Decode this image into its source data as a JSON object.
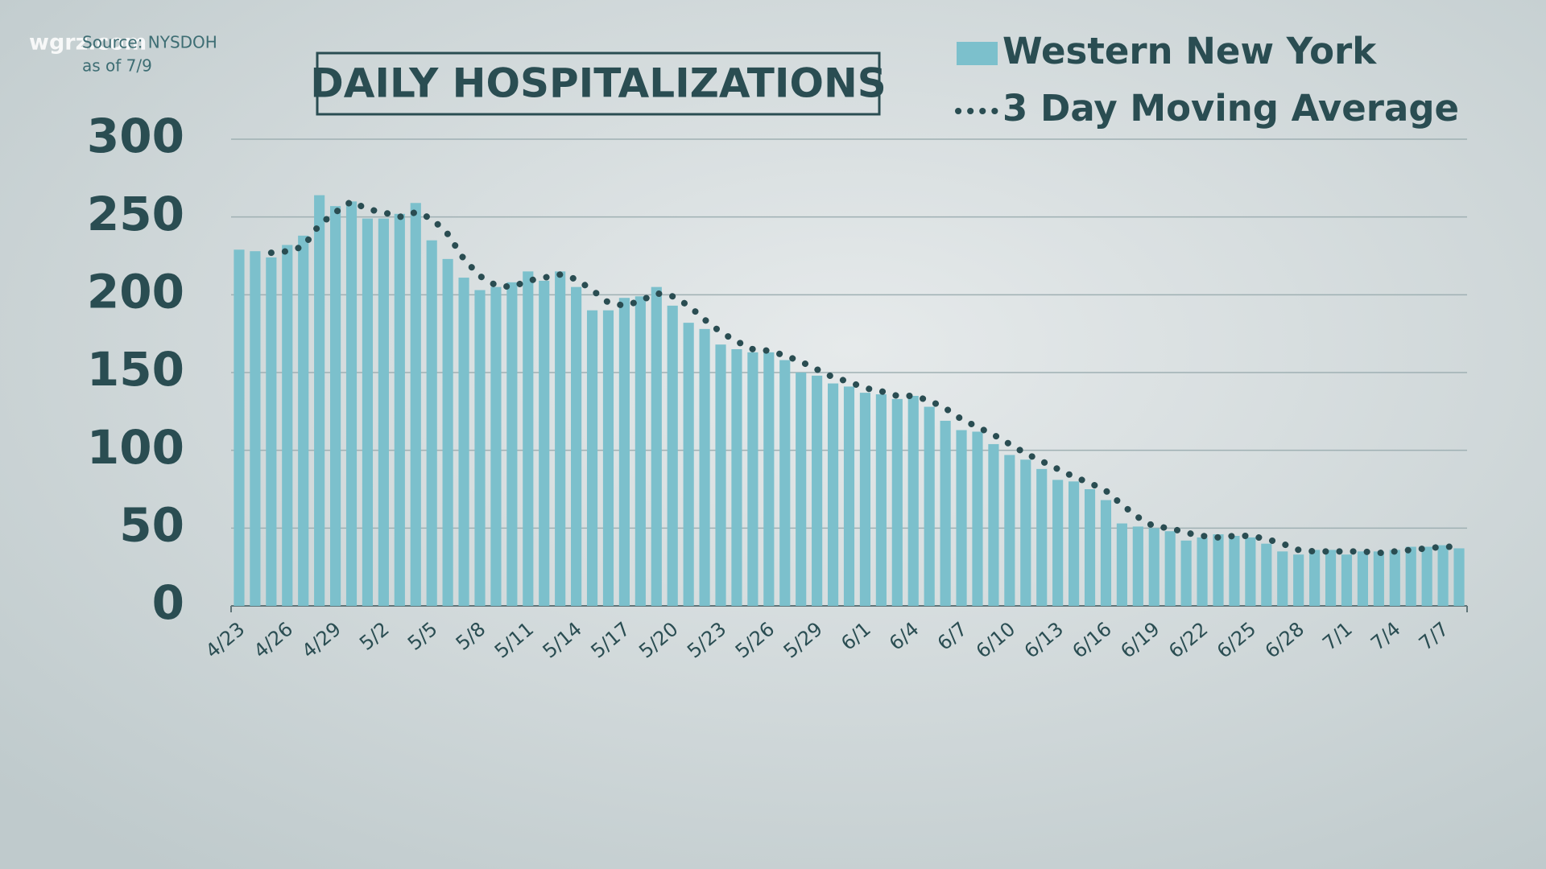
{
  "watermark": "wgrz.com",
  "source": "Source: NYSDOH",
  "as_of": "as of 7/9",
  "chart_data": {
    "type": "bar",
    "title": "DAILY HOSPITALIZATIONS",
    "legend": "top-right",
    "grid": true,
    "ylim": [
      0,
      300
    ],
    "yticks": [
      0,
      50,
      100,
      150,
      200,
      250,
      300
    ],
    "categories": [
      "4/23",
      null,
      null,
      "4/26",
      null,
      null,
      "4/29",
      null,
      null,
      "5/2",
      null,
      null,
      "5/5",
      null,
      null,
      "5/8",
      null,
      null,
      "5/11",
      null,
      null,
      "5/14",
      null,
      null,
      "5/17",
      null,
      null,
      "5/20",
      null,
      null,
      "5/23",
      null,
      null,
      "5/26",
      null,
      null,
      "5/29",
      null,
      null,
      "6/1",
      null,
      null,
      "6/4",
      null,
      null,
      "6/7",
      null,
      null,
      "6/10",
      null,
      null,
      "6/13",
      null,
      null,
      "6/16",
      null,
      null,
      "6/19",
      null,
      null,
      "6/22",
      null,
      null,
      "6/25",
      null,
      null,
      "6/28",
      null,
      null,
      "7/1",
      null,
      null,
      "7/4",
      null,
      null,
      "7/7",
      null
    ],
    "series": [
      {
        "name": "Western New York",
        "type": "bar",
        "color": "#7cc0cc",
        "values": [
          229,
          228,
          224,
          232,
          238,
          264,
          257,
          260,
          249,
          249,
          252,
          259,
          235,
          223,
          211,
          203,
          205,
          208,
          215,
          209,
          215,
          205,
          190,
          190,
          198,
          199,
          205,
          193,
          182,
          178,
          168,
          165,
          163,
          163,
          158,
          150,
          148,
          143,
          141,
          137,
          136,
          133,
          135,
          128,
          119,
          113,
          112,
          104,
          97,
          94,
          88,
          81,
          80,
          75,
          68,
          53,
          51,
          50,
          48,
          42,
          44,
          46,
          45,
          44,
          40,
          35,
          33,
          36,
          36,
          33,
          35,
          35,
          36,
          38,
          38,
          39,
          37
        ]
      },
      {
        "name": "3 Day Moving Average",
        "type": "line",
        "color": "#2a4d52",
        "values": [
          null,
          null,
          227,
          228,
          231,
          245,
          253,
          260,
          255,
          253,
          250,
          253,
          249,
          239,
          223,
          212,
          206,
          205,
          209,
          211,
          213,
          210,
          203,
          195,
          193,
          196,
          201,
          199,
          193,
          184,
          176,
          170,
          165,
          164,
          161,
          157,
          152,
          147,
          144,
          140,
          138,
          135,
          135,
          132,
          127,
          120,
          115,
          110,
          104,
          98,
          93,
          88,
          83,
          79,
          74,
          65,
          57,
          51,
          50,
          47,
          45,
          44,
          45,
          45,
          43,
          40,
          36,
          35,
          35,
          35,
          35,
          34,
          35,
          36,
          37,
          38,
          38
        ]
      }
    ]
  }
}
